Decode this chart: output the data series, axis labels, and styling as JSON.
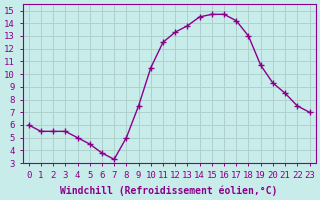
{
  "x": [
    0,
    1,
    2,
    3,
    4,
    5,
    6,
    7,
    8,
    9,
    10,
    11,
    12,
    13,
    14,
    15,
    16,
    17,
    18,
    19,
    20,
    21,
    22,
    23
  ],
  "y": [
    6.0,
    5.5,
    5.5,
    5.5,
    5.0,
    4.5,
    3.8,
    3.3,
    5.0,
    7.5,
    10.5,
    12.5,
    13.3,
    13.8,
    14.5,
    14.7,
    14.7,
    14.2,
    13.0,
    10.7,
    9.3,
    8.5,
    7.5,
    7.0
  ],
  "line_color": "#8B008B",
  "marker": "+",
  "marker_size": 4,
  "bg_color": "#c8ecea",
  "grid_color": "#b0d0ce",
  "xlabel": "Windchill (Refroidissement éolien,°C)",
  "xlim": [
    -0.5,
    23.5
  ],
  "ylim": [
    3,
    15.5
  ],
  "yticks": [
    3,
    4,
    5,
    6,
    7,
    8,
    9,
    10,
    11,
    12,
    13,
    14,
    15
  ],
  "xticks": [
    0,
    1,
    2,
    3,
    4,
    5,
    6,
    7,
    8,
    9,
    10,
    11,
    12,
    13,
    14,
    15,
    16,
    17,
    18,
    19,
    20,
    21,
    22,
    23
  ],
  "tick_label_fontsize": 6.5,
  "xlabel_fontsize": 7,
  "label_color": "#8B008B",
  "spine_color": "#8B008B",
  "tick_color": "#8B008B"
}
